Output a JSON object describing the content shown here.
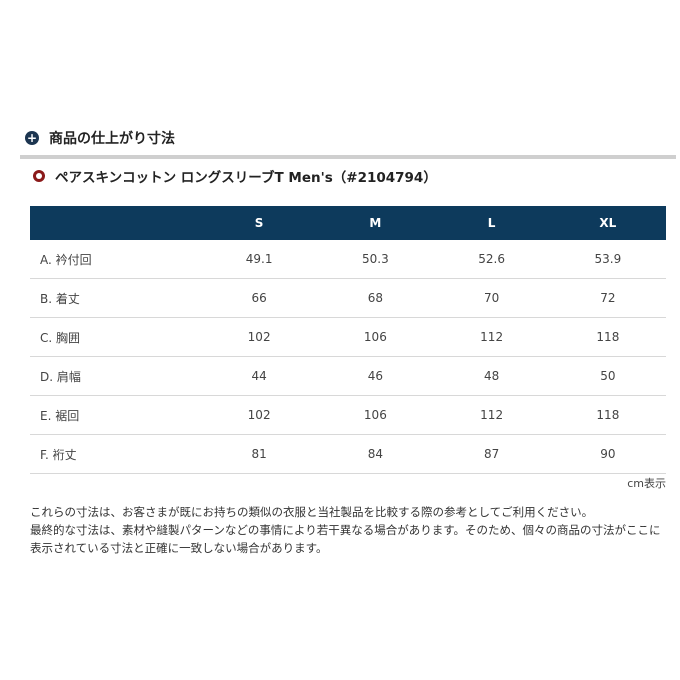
{
  "section_title": "商品の仕上がり寸法",
  "product_title": "ペアスキンコットン ロングスリーブT Men's（#2104794）",
  "colors": {
    "header_bg": "#0d3a5c",
    "accent_red": "#8b1a1a"
  },
  "table": {
    "headers": [
      "",
      "S",
      "M",
      "L",
      "XL"
    ],
    "rows": [
      [
        "A. 衿付回",
        "49.1",
        "50.3",
        "52.6",
        "53.9"
      ],
      [
        "B. 着丈",
        "66",
        "68",
        "70",
        "72"
      ],
      [
        "C. 胸囲",
        "102",
        "106",
        "112",
        "118"
      ],
      [
        "D. 肩幅",
        "44",
        "46",
        "48",
        "50"
      ],
      [
        "E. 裾回",
        "102",
        "106",
        "112",
        "118"
      ],
      [
        "F. 裄丈",
        "81",
        "84",
        "87",
        "90"
      ]
    ]
  },
  "unit_note": "cm表示",
  "notes": [
    "これらの寸法は、お客さまが既にお持ちの類似の衣服と当社製品を比較する際の参考としてご利用ください。",
    "最終的な寸法は、素材や縫製パターンなどの事情により若干異なる場合があります。そのため、個々の商品の寸法がここに表示されている寸法と正確に一致しない場合があります。"
  ]
}
